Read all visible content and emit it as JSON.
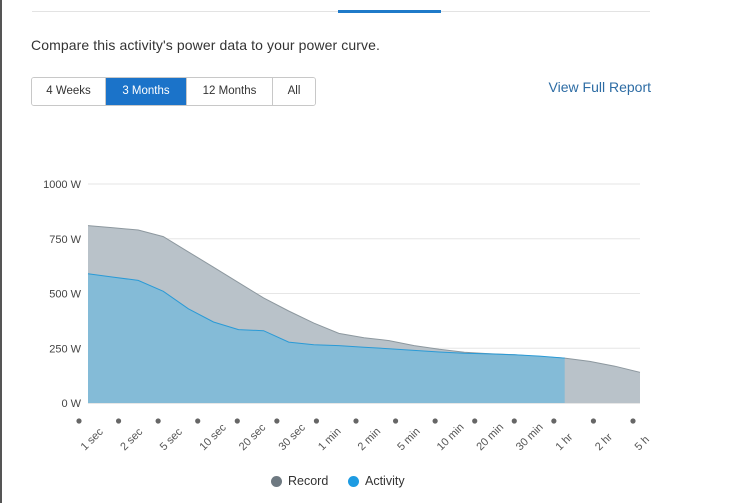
{
  "tabs": {
    "partial_label": ""
  },
  "subtitle": "Compare this activity's power data to your power curve.",
  "ranges": [
    {
      "label": "4 Weeks",
      "active": false
    },
    {
      "label": "3 Months",
      "active": true
    },
    {
      "label": "12 Months",
      "active": false
    },
    {
      "label": "All",
      "active": false
    }
  ],
  "view_report_label": "View Full Report",
  "colors": {
    "record_fill": "#b9c2c9",
    "record_line": "#8d989f",
    "activity_fill": "#84bbd7",
    "activity_line": "#2a9ad6",
    "record_dot": "#6e7981",
    "activity_dot": "#1d9be2",
    "active_button": "#1b73c9"
  },
  "legend": [
    {
      "label": "Record",
      "color": "#6e7981"
    },
    {
      "label": "Activity",
      "color": "#1d9be2"
    }
  ],
  "chart_data": {
    "type": "area",
    "y_ticks": [
      "1000 W",
      "750 W",
      "500 W",
      "250 W",
      "0 W"
    ],
    "ylim": [
      0,
      1000
    ],
    "x_tick_labels": [
      "1 sec",
      "2 sec",
      "5 sec",
      "10 sec",
      "20 sec",
      "30 sec",
      "1 min",
      "2 min",
      "5 min",
      "10 min",
      "20 min",
      "30 min",
      "1 hr",
      "2 hr",
      "5 h"
    ],
    "grid": true,
    "legend_position": "bottom",
    "series": [
      {
        "name": "Record",
        "values": [
          810,
          800,
          790,
          760,
          690,
          620,
          550,
          480,
          420,
          365,
          318,
          298,
          285,
          262,
          245,
          232,
          225,
          220,
          212,
          205,
          190,
          168,
          140
        ]
      },
      {
        "name": "Activity",
        "values": [
          590,
          575,
          560,
          510,
          430,
          370,
          335,
          330,
          278,
          266,
          262,
          255,
          248,
          240,
          233,
          227,
          224,
          220,
          214,
          205
        ]
      }
    ]
  }
}
